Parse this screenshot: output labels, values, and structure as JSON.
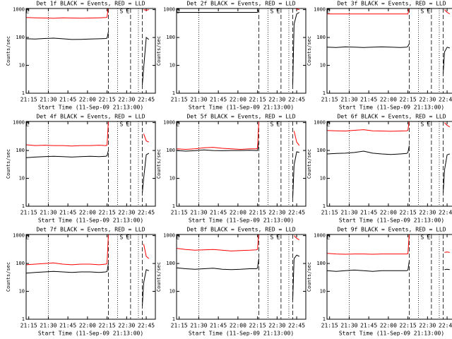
{
  "chart_data": [
    {
      "type": "line",
      "title": "Det 1f BLACK = Events, RED = LLD",
      "ylabel": "Counts/sec",
      "xlabel": "Start Time (11-Sep-09 21:13:00)",
      "log_y": true,
      "x": [
        "21:13",
        "21:20",
        "21:27",
        "21:34",
        "21:41",
        "21:48",
        "21:55",
        "22:02",
        "22:09",
        "22:14",
        "22:15",
        "22:16",
        "22:41",
        "22:42",
        "22:43",
        "22:45",
        "22:47"
      ],
      "xlim": [
        "21:13",
        "22:52"
      ],
      "xticks": [
        "21:15",
        "21:30",
        "21:45",
        "22:00",
        "22:15",
        "22:30",
        "22:45"
      ],
      "ylim": [
        1,
        1100
      ],
      "yticks": [
        1,
        10,
        100,
        1000
      ],
      "series": [
        {
          "color": "#000000",
          "values": [
            90,
            88,
            92,
            95,
            90,
            85,
            86,
            88,
            90,
            92,
            95,
            160,
            null,
            2,
            8,
            100,
            85
          ]
        },
        {
          "color": "#ff0000",
          "values": [
            520,
            510,
            500,
            490,
            505,
            500,
            495,
            500,
            510,
            520,
            530,
            1500,
            null,
            null,
            1000,
            950,
            1000
          ]
        }
      ]
    },
    {
      "type": "line",
      "title": "Det 2f BLACK = Events, RED = LLD",
      "ylabel": "Counts/sec",
      "xlabel": "Start Time (11-Sep-09 21:13:00)",
      "log_y": true,
      "x": [
        "21:13",
        "21:20",
        "21:27",
        "21:34",
        "21:41",
        "21:48",
        "21:55",
        "22:02",
        "22:09",
        "22:14",
        "22:15",
        "22:16",
        "22:41",
        "22:42",
        "22:43",
        "22:45",
        "22:47"
      ],
      "xlim": [
        "21:13",
        "22:52"
      ],
      "xticks": [
        "21:15",
        "21:30",
        "21:45",
        "22:00",
        "22:15",
        "22:30",
        "22:45"
      ],
      "ylim": [
        1,
        1100
      ],
      "yticks": [
        1,
        10,
        100,
        1000
      ],
      "series": [
        {
          "color": "#000000",
          "values": [
            800,
            800,
            800,
            800,
            800,
            800,
            800,
            800,
            800,
            800,
            800,
            1000,
            null,
            2,
            300,
            700,
            800
          ]
        },
        {
          "color": "#ff0000",
          "values": [
            1100,
            1100,
            1100,
            1100,
            1100,
            1100,
            1100,
            1100,
            1100,
            1100,
            1100,
            3000,
            null,
            1500,
            1200,
            1050,
            1000
          ]
        }
      ]
    },
    {
      "type": "line",
      "title": "Det 3f BLACK = Events, RED = LLD",
      "ylabel": "Counts/sec",
      "xlabel": "Start Time (11-Sep-09 21:13:00)",
      "log_y": true,
      "x": [
        "21:13",
        "21:20",
        "21:27",
        "21:34",
        "21:41",
        "21:48",
        "21:55",
        "22:02",
        "22:09",
        "22:14",
        "22:15",
        "22:16",
        "22:41",
        "22:42",
        "22:43",
        "22:45",
        "22:47"
      ],
      "xlim": [
        "21:13",
        "22:52"
      ],
      "xticks": [
        "21:15",
        "21:30",
        "21:45",
        "22:00",
        "22:15",
        "22:30",
        "22:45"
      ],
      "ylim": [
        1,
        1100
      ],
      "yticks": [
        1,
        10,
        100,
        1000
      ],
      "series": [
        {
          "color": "#000000",
          "values": [
            45,
            44,
            46,
            45,
            44,
            45,
            46,
            45,
            44,
            45,
            48,
            60,
            null,
            5,
            30,
            45,
            42
          ]
        },
        {
          "color": "#ff0000",
          "values": [
            700,
            700,
            700,
            700,
            700,
            700,
            700,
            700,
            700,
            700,
            700,
            1200,
            null,
            null,
            1000,
            800,
            700
          ]
        }
      ]
    },
    {
      "type": "line",
      "title": "Det 4f BLACK = Events, RED = LLD",
      "ylabel": "Counts/sec",
      "xlabel": "Start Time (11-Sep-09 21:13:00)",
      "log_y": true,
      "x": [
        "21:13",
        "21:20",
        "21:27",
        "21:34",
        "21:41",
        "21:48",
        "21:55",
        "22:02",
        "22:09",
        "22:14",
        "22:15",
        "22:16",
        "22:41",
        "22:42",
        "22:43",
        "22:45",
        "22:47"
      ],
      "xlim": [
        "21:13",
        "22:52"
      ],
      "xticks": [
        "21:15",
        "21:30",
        "21:45",
        "22:00",
        "22:15",
        "22:30",
        "22:45"
      ],
      "ylim": [
        1,
        1100
      ],
      "yticks": [
        1,
        10,
        100,
        1000
      ],
      "series": [
        {
          "color": "#000000",
          "values": [
            55,
            58,
            60,
            62,
            60,
            58,
            60,
            62,
            60,
            62,
            65,
            100,
            null,
            3,
            10,
            70,
            80
          ]
        },
        {
          "color": "#ff0000",
          "values": [
            160,
            150,
            155,
            150,
            150,
            145,
            150,
            150,
            155,
            150,
            155,
            1200,
            null,
            null,
            400,
            220,
            200
          ]
        }
      ]
    },
    {
      "type": "line",
      "title": "Det 5f BLACK = Events, RED = LLD",
      "ylabel": "Counts/sec",
      "xlabel": "Start Time (11-Sep-09 21:13:00)",
      "log_y": true,
      "x": [
        "21:13",
        "21:20",
        "21:27",
        "21:34",
        "21:41",
        "21:48",
        "21:55",
        "22:02",
        "22:09",
        "22:14",
        "22:15",
        "22:16",
        "22:41",
        "22:42",
        "22:43",
        "22:45",
        "22:47"
      ],
      "xlim": [
        "21:13",
        "22:52"
      ],
      "xticks": [
        "21:15",
        "21:30",
        "21:45",
        "22:00",
        "22:15",
        "22:30",
        "22:45"
      ],
      "ylim": [
        1,
        1100
      ],
      "yticks": [
        1,
        10,
        100,
        1000
      ],
      "series": [
        {
          "color": "#000000",
          "values": [
            100,
            95,
            98,
            105,
            100,
            98,
            100,
            100,
            102,
            100,
            100,
            200,
            null,
            2,
            30,
            90,
            85
          ]
        },
        {
          "color": "#ff0000",
          "values": [
            115,
            110,
            115,
            125,
            130,
            120,
            115,
            110,
            115,
            115,
            120,
            1200,
            null,
            null,
            500,
            200,
            150
          ]
        }
      ]
    },
    {
      "type": "line",
      "title": "Det 6f BLACK = Events, RED = LLD",
      "ylabel": "Counts/sec",
      "xlabel": "Start Time (11-Sep-09 21:13:00)",
      "log_y": true,
      "x": [
        "21:13",
        "21:20",
        "21:27",
        "21:34",
        "21:41",
        "21:48",
        "21:55",
        "22:02",
        "22:09",
        "22:14",
        "22:15",
        "22:16",
        "22:41",
        "22:42",
        "22:43",
        "22:45",
        "22:47"
      ],
      "xlim": [
        "21:13",
        "22:52"
      ],
      "xticks": [
        "21:15",
        "21:30",
        "21:45",
        "22:00",
        "22:15",
        "22:30",
        "22:45"
      ],
      "ylim": [
        1,
        1100
      ],
      "yticks": [
        1,
        10,
        100,
        1000
      ],
      "series": [
        {
          "color": "#000000",
          "values": [
            75,
            78,
            80,
            85,
            95,
            80,
            75,
            72,
            75,
            78,
            85,
            150,
            null,
            3,
            20,
            70,
            75
          ]
        },
        {
          "color": "#ff0000",
          "values": [
            520,
            510,
            500,
            530,
            560,
            510,
            500,
            490,
            500,
            510,
            530,
            1200,
            null,
            null,
            1000,
            800,
            700
          ]
        }
      ]
    },
    {
      "type": "line",
      "title": "Det 7f BLACK = Events, RED = LLD",
      "ylabel": "Counts/sec",
      "xlabel": "Start Time (11-Sep-09 21:13:00)",
      "log_y": true,
      "x": [
        "21:13",
        "21:20",
        "21:27",
        "21:34",
        "21:41",
        "21:48",
        "21:55",
        "22:02",
        "22:09",
        "22:14",
        "22:15",
        "22:16",
        "22:41",
        "22:42",
        "22:43",
        "22:45",
        "22:47"
      ],
      "xlim": [
        "21:13",
        "22:52"
      ],
      "xticks": [
        "21:15",
        "21:30",
        "21:45",
        "22:00",
        "22:15",
        "22:30",
        "22:45"
      ],
      "ylim": [
        1,
        1100
      ],
      "yticks": [
        1,
        10,
        100,
        1000
      ],
      "series": [
        {
          "color": "#000000",
          "values": [
            45,
            48,
            50,
            52,
            50,
            48,
            50,
            50,
            48,
            50,
            52,
            100,
            null,
            3,
            20,
            60,
            55
          ]
        },
        {
          "color": "#ff0000",
          "values": [
            90,
            95,
            100,
            105,
            95,
            90,
            95,
            95,
            90,
            95,
            100,
            1200,
            null,
            null,
            500,
            180,
            150
          ]
        }
      ]
    },
    {
      "type": "line",
      "title": "Det 8f BLACK = Events, RED = LLD",
      "ylabel": "Counts/sec",
      "xlabel": "Start Time (11-Sep-09 21:13:00)",
      "log_y": true,
      "x": [
        "21:13",
        "21:20",
        "21:27",
        "21:34",
        "21:41",
        "21:48",
        "21:55",
        "22:02",
        "22:09",
        "22:14",
        "22:15",
        "22:16",
        "22:41",
        "22:42",
        "22:43",
        "22:45",
        "22:47"
      ],
      "xlim": [
        "21:13",
        "22:52"
      ],
      "xticks": [
        "21:15",
        "21:30",
        "21:45",
        "22:00",
        "22:15",
        "22:30",
        "22:45"
      ],
      "ylim": [
        1,
        1100
      ],
      "yticks": [
        1,
        10,
        100,
        1000
      ],
      "series": [
        {
          "color": "#000000",
          "values": [
            70,
            65,
            62,
            65,
            68,
            62,
            60,
            62,
            65,
            65,
            68,
            150,
            null,
            5,
            150,
            200,
            180
          ]
        },
        {
          "color": "#ff0000",
          "values": [
            350,
            320,
            300,
            310,
            320,
            300,
            280,
            290,
            300,
            310,
            320,
            1500,
            null,
            null,
            1000,
            800,
            700
          ]
        }
      ]
    },
    {
      "type": "line",
      "title": "Det 9f BLACK = Events, RED = LLD",
      "ylabel": "Counts/sec",
      "xlabel": "Start Time (11-Sep-09 21:13:00)",
      "log_y": true,
      "x": [
        "21:13",
        "21:20",
        "21:27",
        "21:34",
        "21:41",
        "21:48",
        "21:55",
        "22:02",
        "22:09",
        "22:14",
        "22:15",
        "22:16",
        "22:41",
        "22:42",
        "22:43",
        "22:45",
        "22:47"
      ],
      "xlim": [
        "21:13",
        "22:52"
      ],
      "xticks": [
        "21:15",
        "21:30",
        "21:45",
        "22:00",
        "22:15",
        "22:30",
        "22:45"
      ],
      "ylim": [
        1,
        1100
      ],
      "yticks": [
        1,
        10,
        100,
        1000
      ],
      "series": [
        {
          "color": "#000000",
          "values": [
            55,
            52,
            55,
            58,
            55,
            52,
            55,
            55,
            55,
            55,
            58,
            120,
            null,
            null,
            60,
            62,
            60
          ]
        },
        {
          "color": "#ff0000",
          "values": [
            230,
            220,
            215,
            220,
            220,
            215,
            220,
            220,
            220,
            220,
            225,
            1200,
            null,
            null,
            250,
            260,
            250
          ]
        }
      ]
    }
  ],
  "markers": {
    "vlines": [
      {
        "x": "21:30",
        "style": "dotted"
      },
      {
        "x": "22:16",
        "style": "dashed"
      },
      {
        "x": "22:23",
        "style": "dotted"
      },
      {
        "x": "22:33",
        "style": "dashed"
      },
      {
        "x": "22:39",
        "style": "dotted"
      },
      {
        "x": "22:42",
        "style": "dashed"
      }
    ],
    "labels": [
      {
        "text": "E",
        "x": "21:14"
      },
      {
        "text": "S",
        "x": "22:26"
      },
      {
        "text": "E",
        "x": "22:31"
      }
    ]
  }
}
